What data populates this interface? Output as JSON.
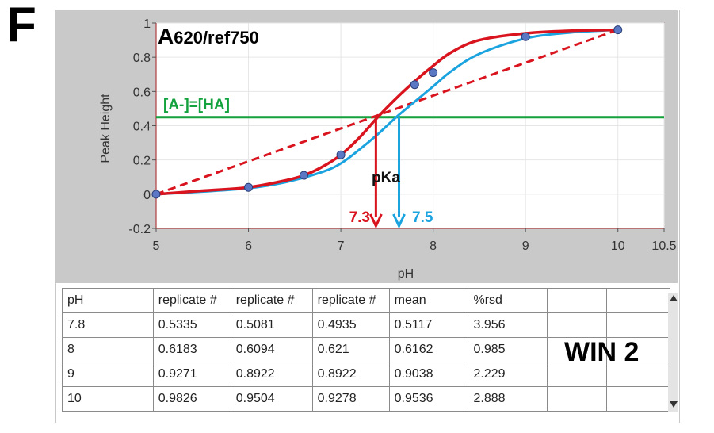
{
  "panel_label": "F",
  "overlay_label": "WIN 2",
  "colors": {
    "red": "#d9141e",
    "blue": "#1aa3de",
    "green": "#13a23d",
    "point_fill": "#5b78c4",
    "gray_bg": "#c9c9c9"
  },
  "chart_data": {
    "type": "line",
    "title": "A620/ref750",
    "xlabel": "pH",
    "ylabel": "Peak Height",
    "xlim": [
      5,
      10.5
    ],
    "ylim": [
      -0.2,
      1
    ],
    "xticks": [
      "5",
      "6",
      "7",
      "8",
      "9",
      "10",
      "10.5"
    ],
    "yticks": [
      "-0.2",
      "0",
      "0.2",
      "0.4",
      "0.6",
      "0.8",
      "1"
    ],
    "grid": true,
    "points": {
      "x": [
        5,
        6,
        6.6,
        7,
        7.8,
        8,
        9,
        10
      ],
      "y": [
        0.0,
        0.04,
        0.11,
        0.23,
        0.64,
        0.71,
        0.92,
        0.96
      ]
    },
    "series": [
      {
        "name": "",
        "color": "#d9141e",
        "x": [
          5,
          5.5,
          6,
          6.4,
          6.6,
          6.8,
          7,
          7.2,
          7.4,
          7.6,
          7.8,
          8,
          8.2,
          8.5,
          9,
          9.5,
          10
        ],
        "y": [
          0.0,
          0.02,
          0.04,
          0.08,
          0.11,
          0.16,
          0.23,
          0.33,
          0.45,
          0.56,
          0.66,
          0.75,
          0.83,
          0.9,
          0.94,
          0.955,
          0.96
        ]
      },
      {
        "name": "",
        "color": "#1aa3de",
        "x": [
          5,
          5.5,
          6,
          6.4,
          6.8,
          7,
          7.2,
          7.4,
          7.6,
          7.8,
          8,
          8.2,
          8.5,
          9,
          9.5,
          10
        ],
        "y": [
          0.0,
          0.015,
          0.035,
          0.07,
          0.13,
          0.18,
          0.26,
          0.35,
          0.45,
          0.54,
          0.63,
          0.72,
          0.82,
          0.91,
          0.945,
          0.96
        ]
      }
    ],
    "reference_line": {
      "label": "[A-]=[HA]",
      "y": 0.45,
      "color": "#13a23d"
    },
    "dashed_line": {
      "x": [
        5,
        10
      ],
      "y": [
        0.0,
        0.96
      ],
      "color": "#d9141e"
    },
    "annotations": [
      {
        "text": "pKa",
        "x": 7.5,
        "y": 0.2
      },
      {
        "text": "7.3",
        "x": 7.38,
        "color": "#d9141e"
      },
      {
        "text": "7.5",
        "x": 7.63,
        "color": "#1aa3de"
      }
    ]
  },
  "table": {
    "headers": [
      "pH",
      "replicate #",
      "replicate #",
      "replicate #",
      "mean",
      "%rsd",
      "",
      ""
    ],
    "rows": [
      [
        "7.8",
        "0.5335",
        "0.5081",
        "0.4935",
        "0.5117",
        "3.956",
        "",
        ""
      ],
      [
        "8",
        "0.6183",
        "0.6094",
        "0.621",
        "0.6162",
        "0.985",
        "",
        ""
      ],
      [
        "9",
        "0.9271",
        "0.8922",
        "0.8922",
        "0.9038",
        "2.229",
        "",
        ""
      ],
      [
        "10",
        "0.9826",
        "0.9504",
        "0.9278",
        "0.9536",
        "2.888",
        "",
        ""
      ]
    ]
  }
}
